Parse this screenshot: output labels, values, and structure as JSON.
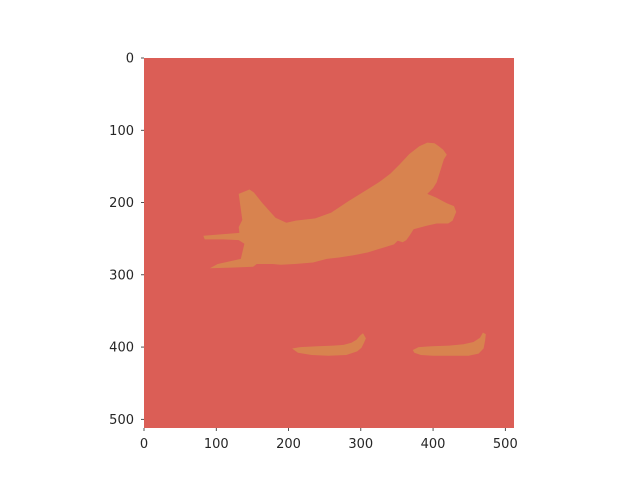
{
  "image_plot": {
    "type": "segmentation-mask",
    "colors": {
      "background": "#DB5E56",
      "foreground": "#D8834F",
      "page": "#FFFFFF",
      "tick_text": "#262626"
    },
    "xlim": [
      0,
      512
    ],
    "ylim": [
      512,
      0
    ],
    "x_ticks": [
      {
        "value": 0,
        "label": "0"
      },
      {
        "value": 100,
        "label": "100"
      },
      {
        "value": 200,
        "label": "200"
      },
      {
        "value": 300,
        "label": "300"
      },
      {
        "value": 400,
        "label": "400"
      },
      {
        "value": 500,
        "label": "500"
      }
    ],
    "y_ticks": [
      {
        "value": 0,
        "label": "0"
      },
      {
        "value": 100,
        "label": "100"
      },
      {
        "value": 200,
        "label": "200"
      },
      {
        "value": 300,
        "label": "300"
      },
      {
        "value": 400,
        "label": "400"
      },
      {
        "value": 500,
        "label": "500"
      }
    ],
    "regions": [
      {
        "name": "large-airplane",
        "outline": [
          [
            82,
            246
          ],
          [
            132,
            242
          ],
          [
            131,
            234
          ],
          [
            136,
            224
          ],
          [
            131,
            188
          ],
          [
            146,
            182
          ],
          [
            152,
            186
          ],
          [
            164,
            201
          ],
          [
            182,
            221
          ],
          [
            197,
            228
          ],
          [
            210,
            225
          ],
          [
            237,
            222
          ],
          [
            259,
            214
          ],
          [
            283,
            198
          ],
          [
            304,
            185
          ],
          [
            325,
            172
          ],
          [
            341,
            160
          ],
          [
            354,
            147
          ],
          [
            367,
            133
          ],
          [
            381,
            122
          ],
          [
            392,
            117
          ],
          [
            402,
            118
          ],
          [
            408,
            122
          ],
          [
            414,
            127
          ],
          [
            419,
            134
          ],
          [
            415,
            140
          ],
          [
            410,
            156
          ],
          [
            405,
            172
          ],
          [
            400,
            180
          ],
          [
            392,
            188
          ],
          [
            404,
            193
          ],
          [
            419,
            201
          ],
          [
            429,
            205
          ],
          [
            432,
            213
          ],
          [
            427,
            225
          ],
          [
            421,
            229
          ],
          [
            405,
            229
          ],
          [
            391,
            232
          ],
          [
            373,
            237
          ],
          [
            368,
            245
          ],
          [
            363,
            252
          ],
          [
            358,
            255
          ],
          [
            351,
            253
          ],
          [
            346,
            258
          ],
          [
            326,
            264
          ],
          [
            310,
            269
          ],
          [
            290,
            273
          ],
          [
            270,
            276
          ],
          [
            253,
            278
          ],
          [
            234,
            283
          ],
          [
            209,
            285
          ],
          [
            189,
            286
          ],
          [
            178,
            285
          ],
          [
            156,
            285
          ],
          [
            151,
            289
          ],
          [
            121,
            290
          ],
          [
            91,
            291
          ],
          [
            102,
            285
          ],
          [
            120,
            281
          ],
          [
            134,
            278
          ],
          [
            139,
            257
          ],
          [
            131,
            252
          ],
          [
            110,
            251
          ],
          [
            84,
            251
          ]
        ]
      },
      {
        "name": "small-airplane-left",
        "outline": [
          [
            205,
            402
          ],
          [
            216,
            400
          ],
          [
            240,
            399
          ],
          [
            262,
            398
          ],
          [
            276,
            397
          ],
          [
            287,
            394
          ],
          [
            294,
            390
          ],
          [
            299,
            384
          ],
          [
            303,
            381
          ],
          [
            307,
            388
          ],
          [
            304,
            395
          ],
          [
            301,
            401
          ],
          [
            295,
            406
          ],
          [
            280,
            411
          ],
          [
            255,
            412
          ],
          [
            232,
            411
          ],
          [
            213,
            408
          ]
        ]
      },
      {
        "name": "small-airplane-right",
        "outline": [
          [
            372,
            404
          ],
          [
            380,
            400
          ],
          [
            398,
            399
          ],
          [
            422,
            398
          ],
          [
            442,
            396
          ],
          [
            456,
            393
          ],
          [
            465,
            387
          ],
          [
            469,
            380
          ],
          [
            473,
            382
          ],
          [
            472,
            391
          ],
          [
            470,
            402
          ],
          [
            463,
            409
          ],
          [
            449,
            412
          ],
          [
            424,
            412
          ],
          [
            400,
            412
          ],
          [
            383,
            411
          ],
          [
            374,
            408
          ]
        ]
      }
    ]
  }
}
